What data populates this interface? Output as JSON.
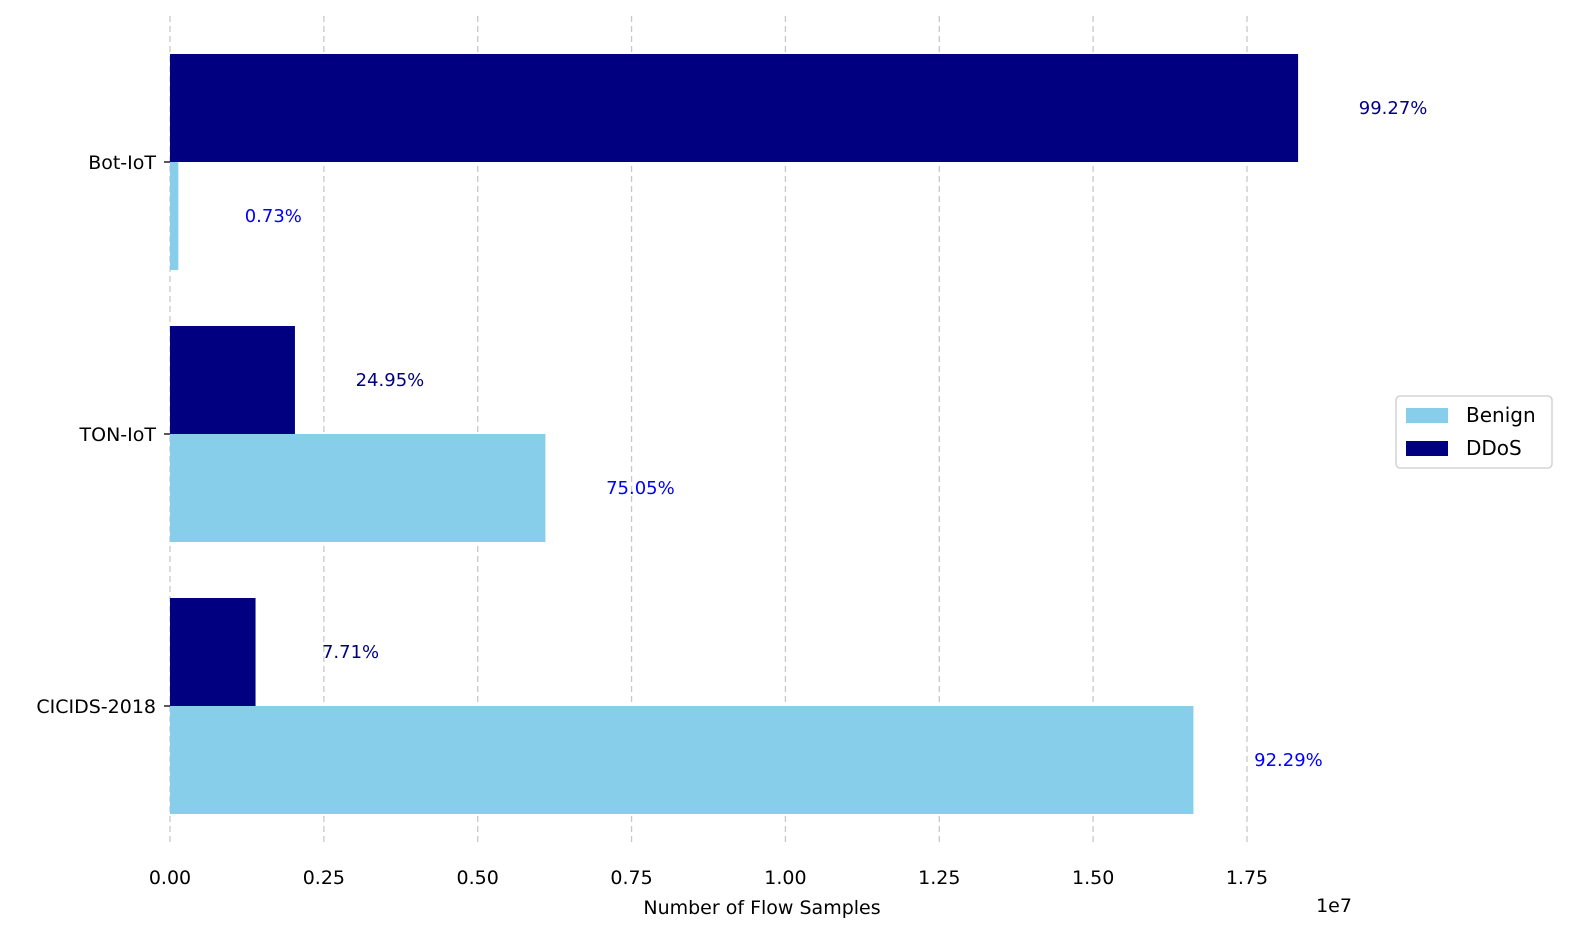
{
  "chart_data": {
    "type": "bar",
    "orientation": "horizontal",
    "title": "",
    "xlabel": "Number of Flow Samples",
    "x_offset_text": "1e7",
    "ylabel": "",
    "xlim": [
      0,
      18500000
    ],
    "x_ticks": [
      0,
      2500000,
      5000000,
      7500000,
      10000000,
      12500000,
      15000000,
      17500000
    ],
    "x_tick_labels": [
      "0.00",
      "0.25",
      "0.50",
      "0.75",
      "1.00",
      "1.25",
      "1.50",
      "1.75"
    ],
    "grid": "x, dashed",
    "legend": "center-right",
    "categories": [
      "Bot-IoT",
      "TON-IoT",
      "CICIDS-2018"
    ],
    "series": [
      {
        "name": "Benign",
        "color": "#87CEEB",
        "label_color": "#0000FF",
        "values": [
          135000,
          6100000,
          16630000
        ],
        "labels": [
          "0.73%",
          "75.05%",
          "92.29%"
        ]
      },
      {
        "name": "DDoS",
        "color": "#000080",
        "label_color": "#000080",
        "values": [
          18330000,
          2030000,
          1390000
        ],
        "labels": [
          "99.27%",
          "24.95%",
          "7.71%"
        ]
      }
    ]
  }
}
